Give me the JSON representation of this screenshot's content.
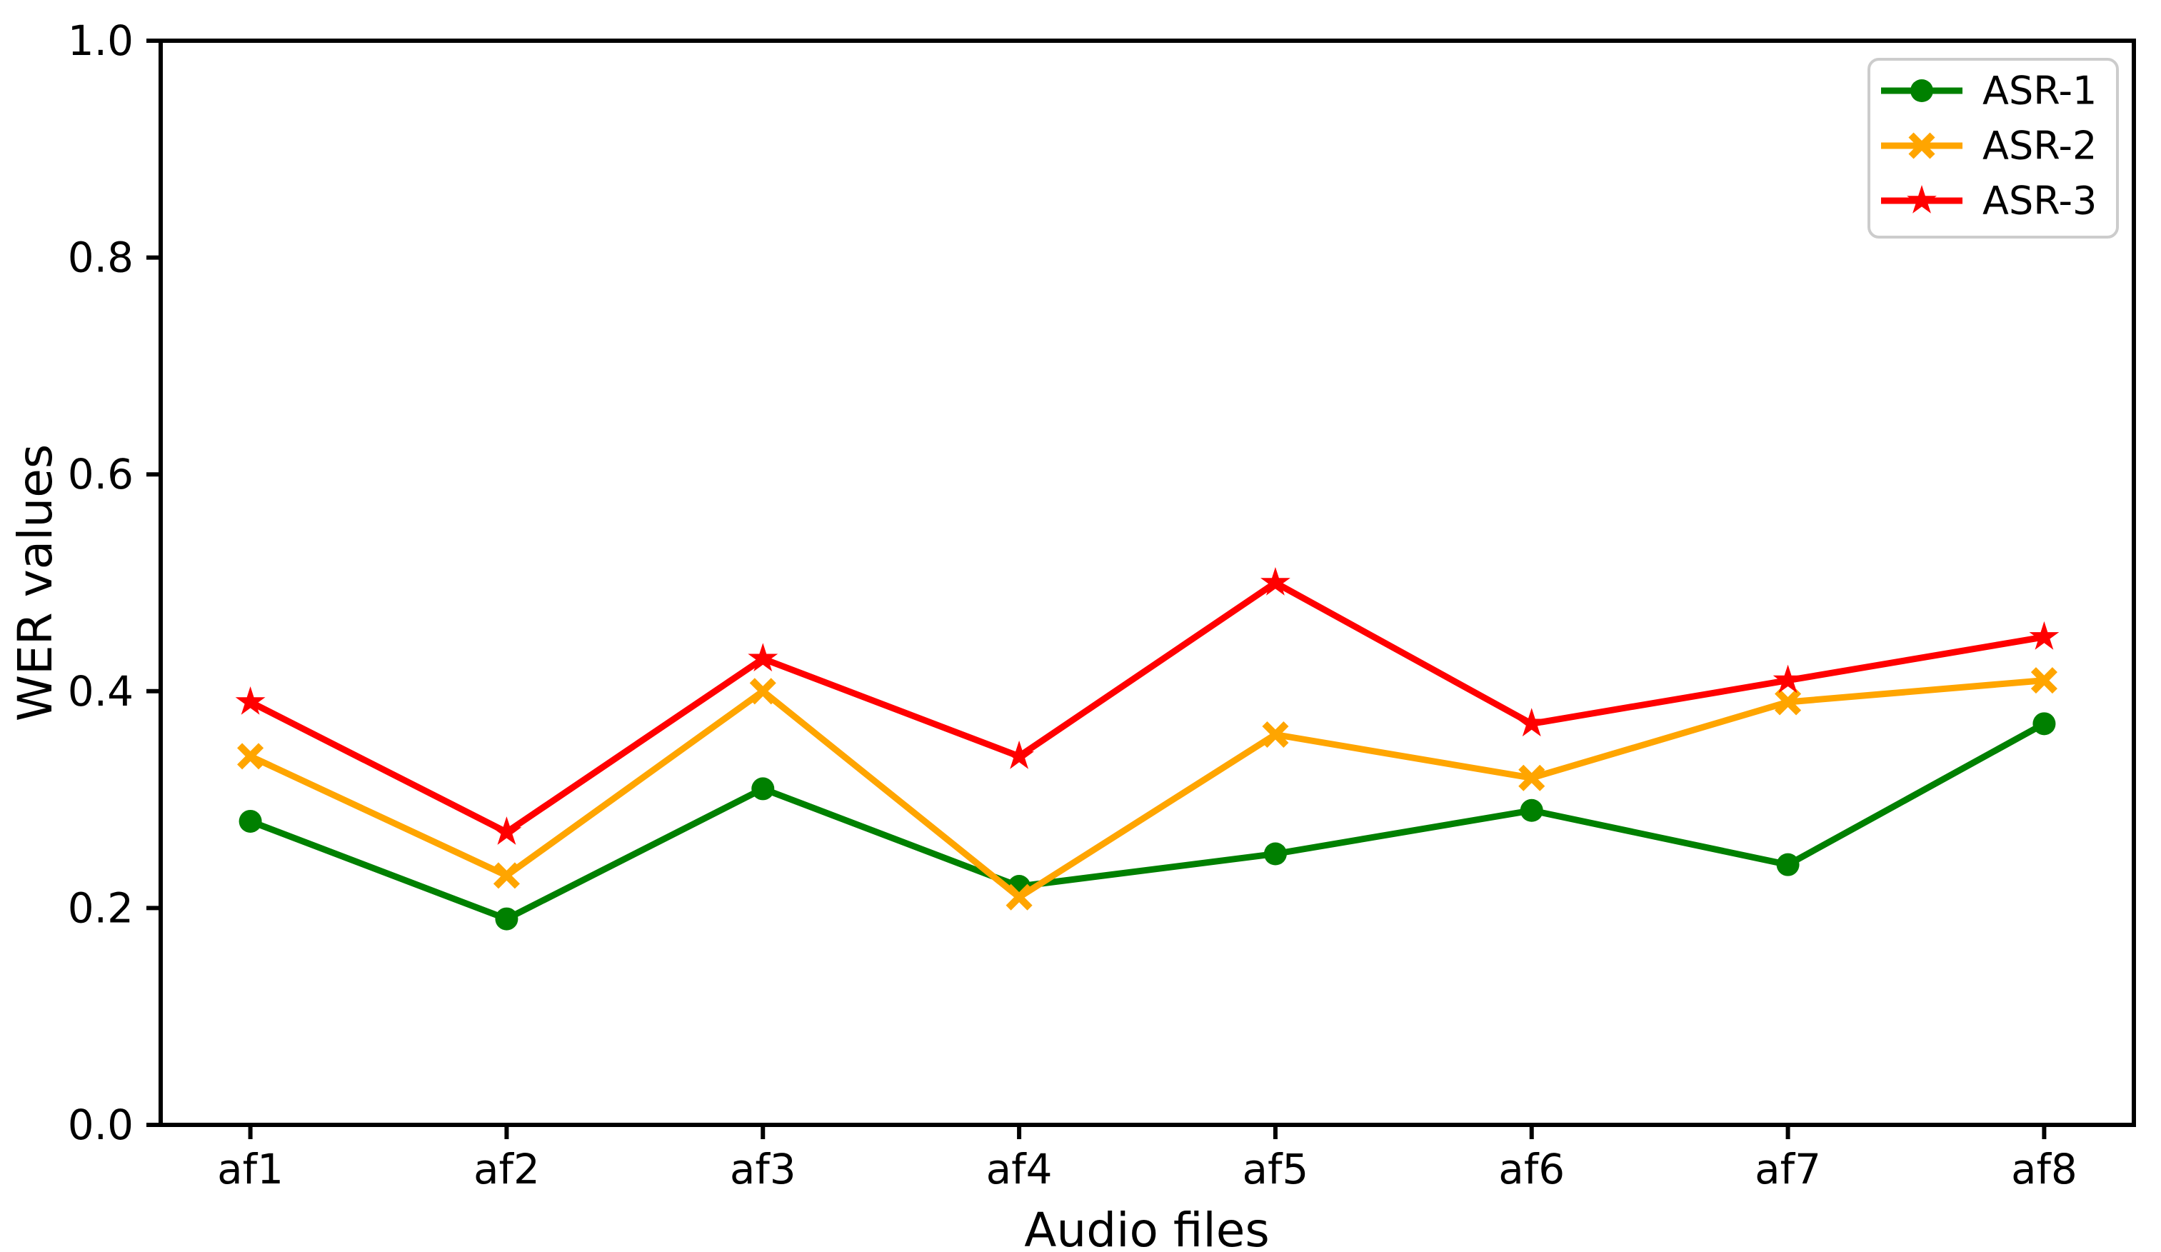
{
  "chart_data": {
    "type": "line",
    "title": "",
    "xlabel": "Audio files",
    "ylabel": "WER values",
    "categories": [
      "af1",
      "af2",
      "af3",
      "af4",
      "af5",
      "af6",
      "af7",
      "af8"
    ],
    "ylim": [
      0.0,
      1.0
    ],
    "ytick_labels": [
      "0.0",
      "0.2",
      "0.4",
      "0.6",
      "0.8",
      "1.0"
    ],
    "grid": false,
    "legend_position": "upper right",
    "series": [
      {
        "name": "ASR-1",
        "color": "#008000",
        "marker": "circle",
        "values": [
          0.28,
          0.19,
          0.31,
          0.22,
          0.25,
          0.29,
          0.24,
          0.37
        ]
      },
      {
        "name": "ASR-2",
        "color": "#FFA500",
        "marker": "x",
        "values": [
          0.34,
          0.23,
          0.4,
          0.21,
          0.36,
          0.32,
          0.39,
          0.41
        ]
      },
      {
        "name": "ASR-3",
        "color": "#FF0000",
        "marker": "star",
        "values": [
          0.39,
          0.27,
          0.43,
          0.34,
          0.5,
          0.37,
          0.41,
          0.45
        ]
      }
    ]
  },
  "colors": {
    "background": "#ffffff",
    "spine": "#000000",
    "text": "#000000",
    "legend_border": "#cccccc"
  }
}
